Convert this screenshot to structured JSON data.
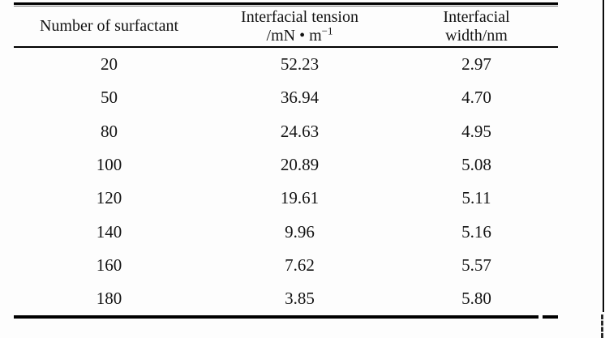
{
  "table": {
    "headers": {
      "col1": "Number of surfactant",
      "col2_line1": "Interfacial tension",
      "col2_unit_base": "/mN • m",
      "col2_unit_exp": "−1",
      "col3_line1": "Interfacial",
      "col3_line2": "width/nm"
    },
    "rows": [
      {
        "surfactant": "20",
        "tension": "52.23",
        "width": "2.97"
      },
      {
        "surfactant": "50",
        "tension": "36.94",
        "width": "4.70"
      },
      {
        "surfactant": "80",
        "tension": "24.63",
        "width": "4.95"
      },
      {
        "surfactant": "100",
        "tension": "20.89",
        "width": "5.08"
      },
      {
        "surfactant": "120",
        "tension": "19.61",
        "width": "5.11"
      },
      {
        "surfactant": "140",
        "tension": "9.96",
        "width": "5.16"
      },
      {
        "surfactant": "160",
        "tension": "7.62",
        "width": "5.57"
      },
      {
        "surfactant": "180",
        "tension": "3.85",
        "width": "5.80"
      }
    ]
  },
  "chart_data": {
    "type": "table",
    "columns": [
      "Number of surfactant",
      "Interfacial tension /mN·m⁻¹",
      "Interfacial width/nm"
    ],
    "rows": [
      [
        20,
        52.23,
        2.97
      ],
      [
        50,
        36.94,
        4.7
      ],
      [
        80,
        24.63,
        4.95
      ],
      [
        100,
        20.89,
        5.08
      ],
      [
        120,
        19.61,
        5.11
      ],
      [
        140,
        9.96,
        5.16
      ],
      [
        160,
        7.62,
        5.57
      ],
      [
        180,
        3.85,
        5.8
      ]
    ]
  },
  "colors": {
    "rule": "#000000",
    "text": "#131313",
    "background": "#fdfdfd"
  }
}
